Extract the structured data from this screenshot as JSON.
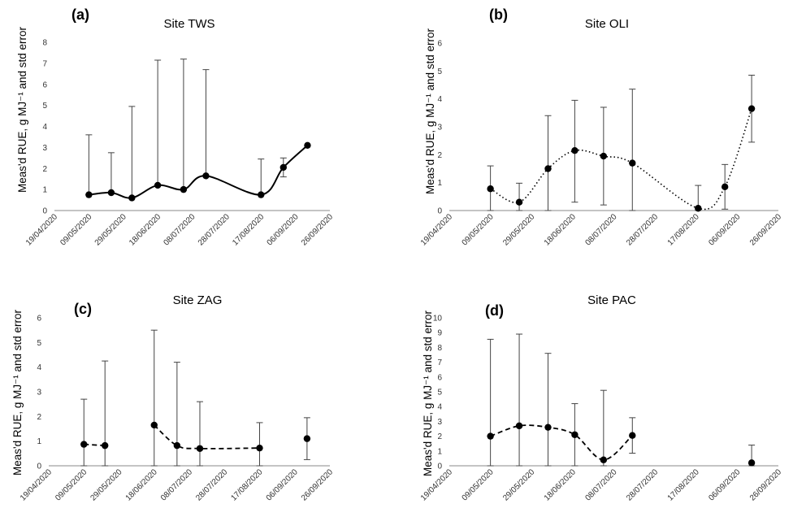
{
  "chart_data": [
    {
      "panel": "(a)",
      "title": "Site TWS",
      "type": "scatter",
      "ylabel": "Meas'd RUE, g MJ⁻¹ and std error",
      "ylim": [
        0,
        8
      ],
      "yticks": [
        0,
        1,
        2,
        3,
        4,
        5,
        6,
        7,
        8
      ],
      "xlim": [
        "2020-04-19",
        "2020-09-26"
      ],
      "xticks": [
        "19/04/2020",
        "09/05/2020",
        "29/05/2020",
        "18/06/2020",
        "08/07/2020",
        "28/07/2020",
        "17/08/2020",
        "06/09/2020",
        "26/09/2020"
      ],
      "line_style": "solid smoothed",
      "segments": [
        [
          0,
          8
        ]
      ],
      "points": [
        {
          "x": "2020-05-09",
          "y": 0.75,
          "err_low": 0.75,
          "err_high": 3.6
        },
        {
          "x": "2020-05-22",
          "y": 0.85,
          "err_low": 0.85,
          "err_high": 2.75
        },
        {
          "x": "2020-06-03",
          "y": 0.6,
          "err_low": 0.6,
          "err_high": 4.95
        },
        {
          "x": "2020-06-18",
          "y": 1.2,
          "err_low": 1.2,
          "err_high": 7.15
        },
        {
          "x": "2020-07-03",
          "y": 1.0,
          "err_low": 1.0,
          "err_high": 7.2
        },
        {
          "x": "2020-07-16",
          "y": 1.65,
          "err_low": 1.65,
          "err_high": 6.7
        },
        {
          "x": "2020-08-17",
          "y": 0.75,
          "err_low": 0.75,
          "err_high": 2.45
        },
        {
          "x": "2020-08-30",
          "y": 2.05,
          "err_low": 1.6,
          "err_high": 2.5
        },
        {
          "x": "2020-09-13",
          "y": 3.1,
          "err_low": null,
          "err_high": null
        }
      ]
    },
    {
      "panel": "(b)",
      "title": "Site OLI",
      "type": "scatter",
      "ylabel": "Meas'd RUE, g MJ⁻¹ and std error",
      "ylim": [
        0,
        6
      ],
      "yticks": [
        0,
        1,
        2,
        3,
        4,
        5,
        6
      ],
      "xlim": [
        "2020-04-19",
        "2020-09-26"
      ],
      "xticks": [
        "19/04/2020",
        "09/05/2020",
        "29/05/2020",
        "18/06/2020",
        "08/07/2020",
        "28/07/2020",
        "17/08/2020",
        "06/09/2020",
        "26/09/2020"
      ],
      "line_style": "dotted smoothed",
      "segments": [
        [
          0,
          8
        ]
      ],
      "points": [
        {
          "x": "2020-05-09",
          "y": 0.78,
          "err_low": 0.0,
          "err_high": 1.6
        },
        {
          "x": "2020-05-23",
          "y": 0.3,
          "err_low": 0.0,
          "err_high": 0.98
        },
        {
          "x": "2020-06-06",
          "y": 1.5,
          "err_low": 0.0,
          "err_high": 3.4
        },
        {
          "x": "2020-06-19",
          "y": 2.15,
          "err_low": 0.3,
          "err_high": 3.95
        },
        {
          "x": "2020-07-03",
          "y": 1.95,
          "err_low": 0.2,
          "err_high": 3.7
        },
        {
          "x": "2020-07-17",
          "y": 1.7,
          "err_low": 0.0,
          "err_high": 4.35
        },
        {
          "x": "2020-08-18",
          "y": 0.08,
          "err_low": 0.0,
          "err_high": 0.9
        },
        {
          "x": "2020-08-31",
          "y": 0.85,
          "err_low": 0.05,
          "err_high": 1.65
        },
        {
          "x": "2020-09-13",
          "y": 3.65,
          "err_low": 2.45,
          "err_high": 4.85
        }
      ]
    },
    {
      "panel": "(c)",
      "title": "Site ZAG",
      "type": "scatter",
      "ylabel": "Meas'd RUE, g MJ⁻¹ and std error",
      "ylim": [
        0,
        6
      ],
      "yticks": [
        0,
        1,
        2,
        3,
        4,
        5,
        6
      ],
      "xlim": [
        "2020-04-19",
        "2020-09-26"
      ],
      "xticks": [
        "19/04/2020",
        "09/05/2020",
        "29/05/2020",
        "18/06/2020",
        "08/07/2020",
        "28/07/2020",
        "17/08/2020",
        "06/09/2020",
        "26/09/2020"
      ],
      "line_style": "dashed smoothed",
      "segments": [
        [
          0,
          1
        ],
        [
          2,
          5
        ]
      ],
      "points": [
        {
          "x": "2020-05-09",
          "y": 0.87,
          "err_low": 0.0,
          "err_high": 2.7
        },
        {
          "x": "2020-05-21",
          "y": 0.82,
          "err_low": 0.0,
          "err_high": 4.25
        },
        {
          "x": "2020-06-18",
          "y": 1.65,
          "err_low": 0.0,
          "err_high": 5.5
        },
        {
          "x": "2020-07-01",
          "y": 0.82,
          "err_low": 0.0,
          "err_high": 4.2
        },
        {
          "x": "2020-07-14",
          "y": 0.7,
          "err_low": 0.0,
          "err_high": 2.6
        },
        {
          "x": "2020-08-17",
          "y": 0.72,
          "err_low": 0.0,
          "err_high": 1.75
        },
        {
          "x": "2020-09-13",
          "y": 1.1,
          "err_low": 0.25,
          "err_high": 1.95
        }
      ]
    },
    {
      "panel": "(d)",
      "title": "Site PAC",
      "type": "scatter",
      "ylabel": "Meas'd RUE, g MJ⁻¹ and std error",
      "ylim": [
        0,
        10
      ],
      "yticks": [
        0,
        1,
        2,
        3,
        4,
        5,
        6,
        7,
        8,
        9,
        10
      ],
      "xlim": [
        "2020-04-19",
        "2020-09-26"
      ],
      "xticks": [
        "19/04/2020",
        "09/05/2020",
        "29/05/2020",
        "18/06/2020",
        "08/07/2020",
        "28/07/2020",
        "17/08/2020",
        "06/09/2020",
        "26/09/2020"
      ],
      "line_style": "dashed smoothed",
      "segments": [
        [
          0,
          5
        ]
      ],
      "points": [
        {
          "x": "2020-05-09",
          "y": 2.0,
          "err_low": 0.0,
          "err_high": 8.55
        },
        {
          "x": "2020-05-23",
          "y": 2.7,
          "err_low": 0.0,
          "err_high": 8.9
        },
        {
          "x": "2020-06-06",
          "y": 2.6,
          "err_low": 0.0,
          "err_high": 7.6
        },
        {
          "x": "2020-06-19",
          "y": 2.1,
          "err_low": 0.0,
          "err_high": 4.2
        },
        {
          "x": "2020-07-03",
          "y": 0.4,
          "err_low": 0.0,
          "err_high": 5.1
        },
        {
          "x": "2020-07-17",
          "y": 2.05,
          "err_low": 0.85,
          "err_high": 3.25
        },
        {
          "x": "2020-09-13",
          "y": 0.2,
          "err_low": 0.0,
          "err_high": 1.4
        }
      ]
    }
  ]
}
